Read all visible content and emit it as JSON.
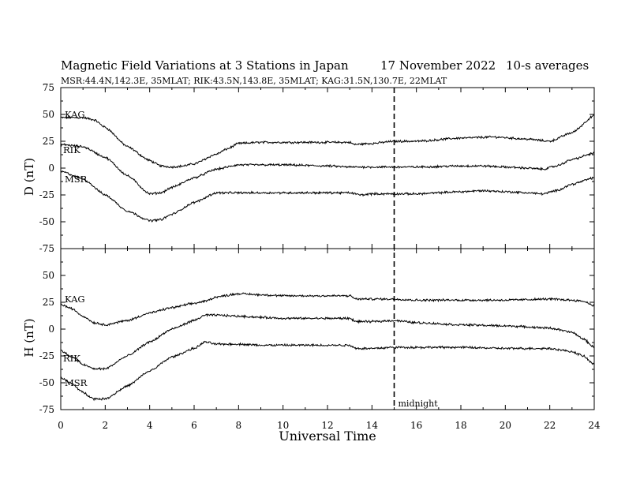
{
  "header": {
    "title": "Magnetic Field Variations at 3 Stations in Japan",
    "date": "17 November 2022",
    "averaging": "10-s averages",
    "stations": "MSR:44.4N,142.3E, 35MLAT;  RIK:43.5N,143.8E, 35MLAT;  KAG:31.5N,130.7E, 22MLAT"
  },
  "chart_data": [
    {
      "type": "line",
      "panel": "D",
      "ylabel": "D (nT)",
      "ylim": [
        -75,
        75
      ],
      "yticks": [
        75,
        50,
        25,
        0,
        -25,
        -50,
        -75
      ],
      "xlim": [
        0,
        24
      ],
      "xticks": [
        0,
        2,
        4,
        6,
        8,
        10,
        12,
        14,
        16,
        18,
        20,
        22,
        24
      ],
      "series": [
        {
          "name": "KAG",
          "x": [
            0,
            1,
            1.5,
            2,
            3,
            4,
            4.5,
            5,
            5.5,
            6,
            7,
            7.5,
            8,
            9,
            10,
            11,
            12,
            13,
            13.2,
            14,
            15,
            16,
            18,
            19.5,
            21,
            22,
            23,
            24
          ],
          "y": [
            47,
            47,
            45,
            38,
            20,
            7,
            2,
            1,
            2,
            4,
            13,
            18,
            23,
            24,
            24,
            24,
            24,
            24,
            22,
            23,
            25,
            25,
            28,
            29,
            27,
            25,
            33,
            49
          ]
        },
        {
          "name": "RIK",
          "x": [
            0,
            1,
            2,
            3,
            4,
            4.5,
            5,
            6,
            7,
            8,
            9,
            10,
            12,
            13,
            14,
            15,
            16,
            18,
            19,
            20,
            21,
            21.7,
            22.3,
            23,
            24
          ],
          "y": [
            22,
            20,
            10,
            -7,
            -24,
            -23,
            -18,
            -9,
            -1,
            3,
            3,
            3,
            2,
            1,
            1,
            1,
            1,
            2,
            2,
            1,
            0,
            -1,
            2,
            8,
            14
          ]
        },
        {
          "name": "MSR",
          "x": [
            0,
            1,
            2,
            3,
            4,
            4.5,
            5,
            6,
            7,
            7.5,
            8,
            9,
            10,
            12,
            13,
            13.5,
            14,
            16,
            18,
            19,
            20,
            21,
            21.7,
            22.3,
            23,
            24
          ],
          "y": [
            -3,
            -10,
            -25,
            -40,
            -49,
            -48,
            -43,
            -32,
            -23,
            -23,
            -23,
            -23,
            -23,
            -23,
            -23,
            -25,
            -24,
            -24,
            -22,
            -21,
            -22,
            -23,
            -24,
            -21,
            -15,
            -9
          ]
        }
      ],
      "annotations": []
    },
    {
      "type": "line",
      "panel": "H",
      "ylabel": "H (nT)",
      "ylim": [
        -75,
        75
      ],
      "yticks": [
        50,
        25,
        0,
        -25,
        -50,
        -75
      ],
      "xlim": [
        0,
        24
      ],
      "xticks": [
        0,
        2,
        4,
        6,
        8,
        10,
        12,
        14,
        16,
        18,
        20,
        22,
        24
      ],
      "xlabel": "Universal Time",
      "series": [
        {
          "name": "KAG",
          "x": [
            0,
            0.5,
            1,
            1.5,
            2,
            3,
            4,
            5,
            6,
            6.5,
            7,
            8,
            9,
            10,
            12,
            13,
            13.3,
            14,
            15,
            16,
            18,
            20,
            22,
            23,
            23.5,
            24
          ],
          "y": [
            23,
            19,
            12,
            6,
            4,
            8,
            15,
            20,
            24,
            26,
            30,
            33,
            32,
            31,
            31,
            31,
            28,
            28,
            28,
            27,
            27,
            27,
            28,
            27,
            26,
            22
          ]
        },
        {
          "name": "RIK",
          "x": [
            0,
            0.5,
            1,
            1.5,
            2,
            3,
            4,
            5,
            6,
            6.5,
            7,
            8,
            9,
            10,
            12,
            13,
            13.3,
            14,
            15,
            16,
            18,
            20,
            22,
            23,
            23.5,
            24
          ],
          "y": [
            -20,
            -26,
            -33,
            -37,
            -37,
            -25,
            -12,
            0,
            8,
            13,
            13,
            12,
            11,
            10,
            10,
            10,
            7,
            7,
            8,
            6,
            4,
            3,
            1,
            -3,
            -9,
            -17
          ]
        },
        {
          "name": "MSR",
          "x": [
            0,
            0.5,
            1,
            1.5,
            2,
            3,
            4,
            5,
            6,
            6.5,
            7,
            8,
            9,
            10,
            12,
            13,
            13.3,
            14,
            15,
            16,
            18,
            20,
            22,
            23,
            23.5,
            24
          ],
          "y": [
            -45,
            -51,
            -59,
            -65,
            -65,
            -53,
            -39,
            -26,
            -18,
            -12,
            -14,
            -14,
            -15,
            -15,
            -15,
            -15,
            -18,
            -18,
            -17,
            -17,
            -17,
            -18,
            -18,
            -21,
            -25,
            -33
          ]
        }
      ],
      "annotations": [
        {
          "x": 15,
          "label": "midnight",
          "style": "dashed vertical line"
        }
      ]
    }
  ]
}
